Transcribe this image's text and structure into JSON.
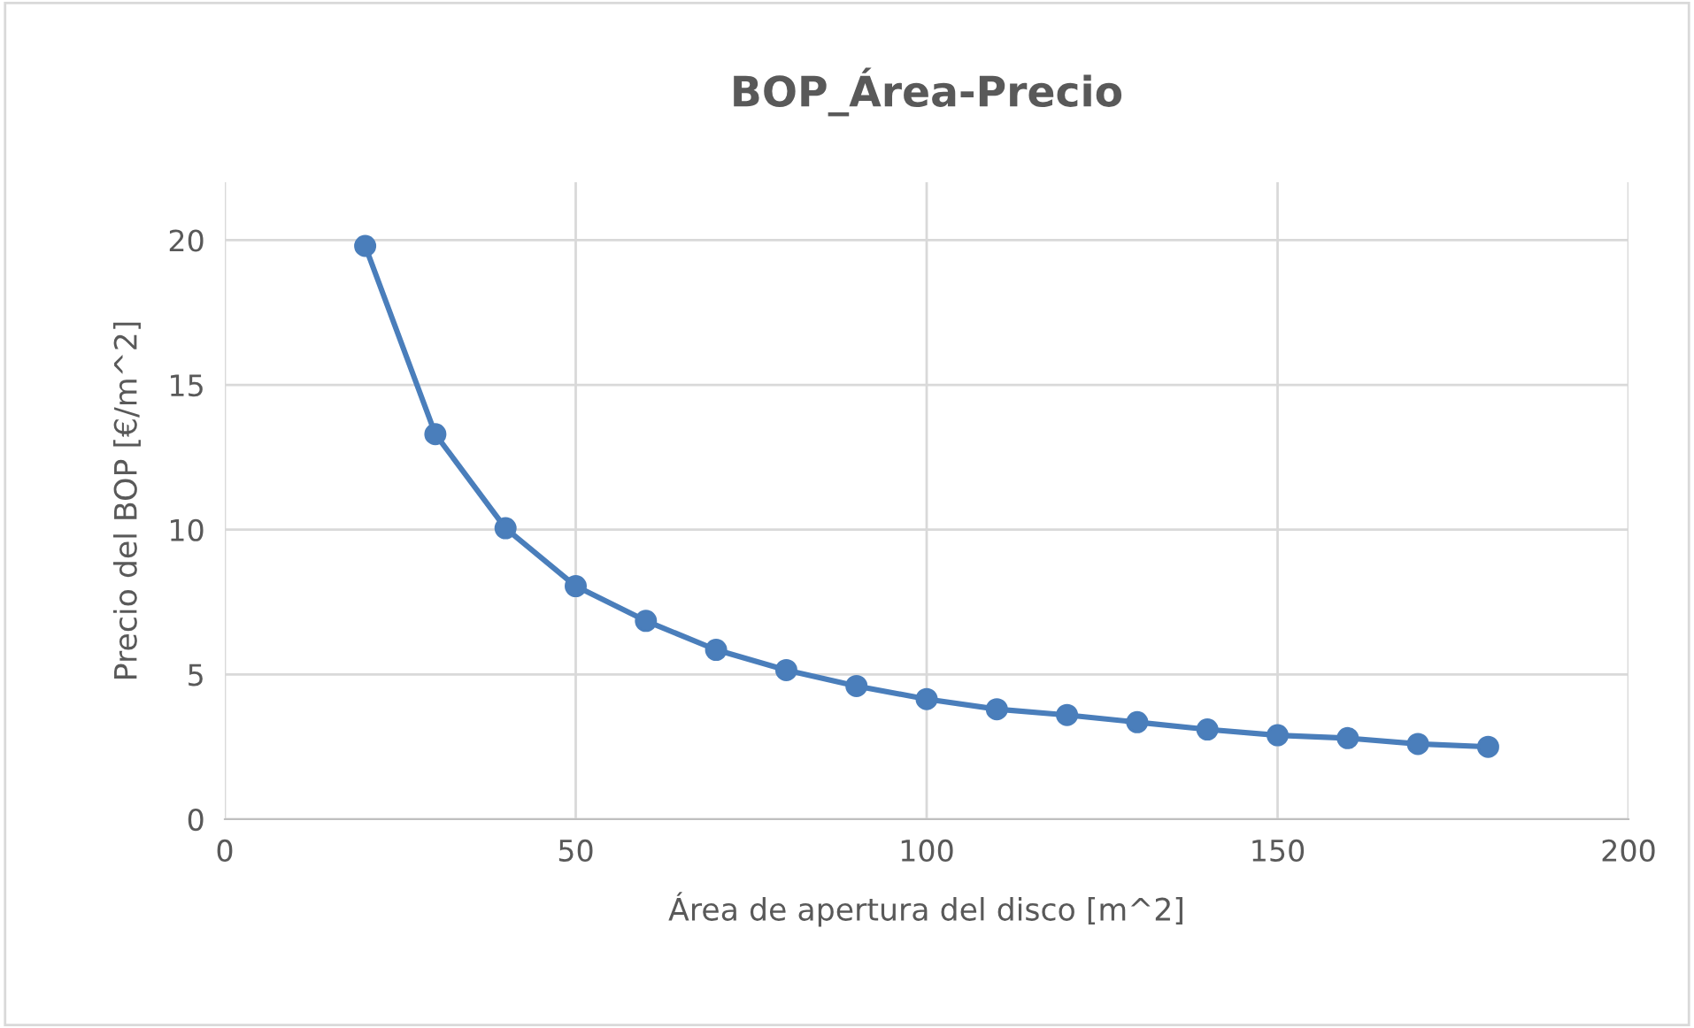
{
  "chart_data": {
    "type": "line",
    "title": "BOP_Área-Precio",
    "xlabel": "Área de apertura del disco [m^2]",
    "ylabel": "Precio del BOP [€/m^2]",
    "x": [
      20,
      30,
      40,
      50,
      60,
      70,
      80,
      90,
      100,
      110,
      120,
      130,
      140,
      150,
      160,
      170,
      180
    ],
    "series": [
      {
        "color": "#4a7ebb",
        "values": [
          19.8,
          13.3,
          10.05,
          8.05,
          6.85,
          5.85,
          5.15,
          4.6,
          4.15,
          3.8,
          3.6,
          3.35,
          3.1,
          2.9,
          2.8,
          2.6,
          2.5
        ]
      }
    ],
    "xlim": [
      0,
      200
    ],
    "xticks": [
      0,
      50,
      100,
      150,
      200
    ],
    "ylim": [
      0,
      22
    ],
    "yticks": [
      0,
      5,
      10,
      15,
      20
    ],
    "grid": true,
    "marker": "circle",
    "line_style": "solid"
  }
}
